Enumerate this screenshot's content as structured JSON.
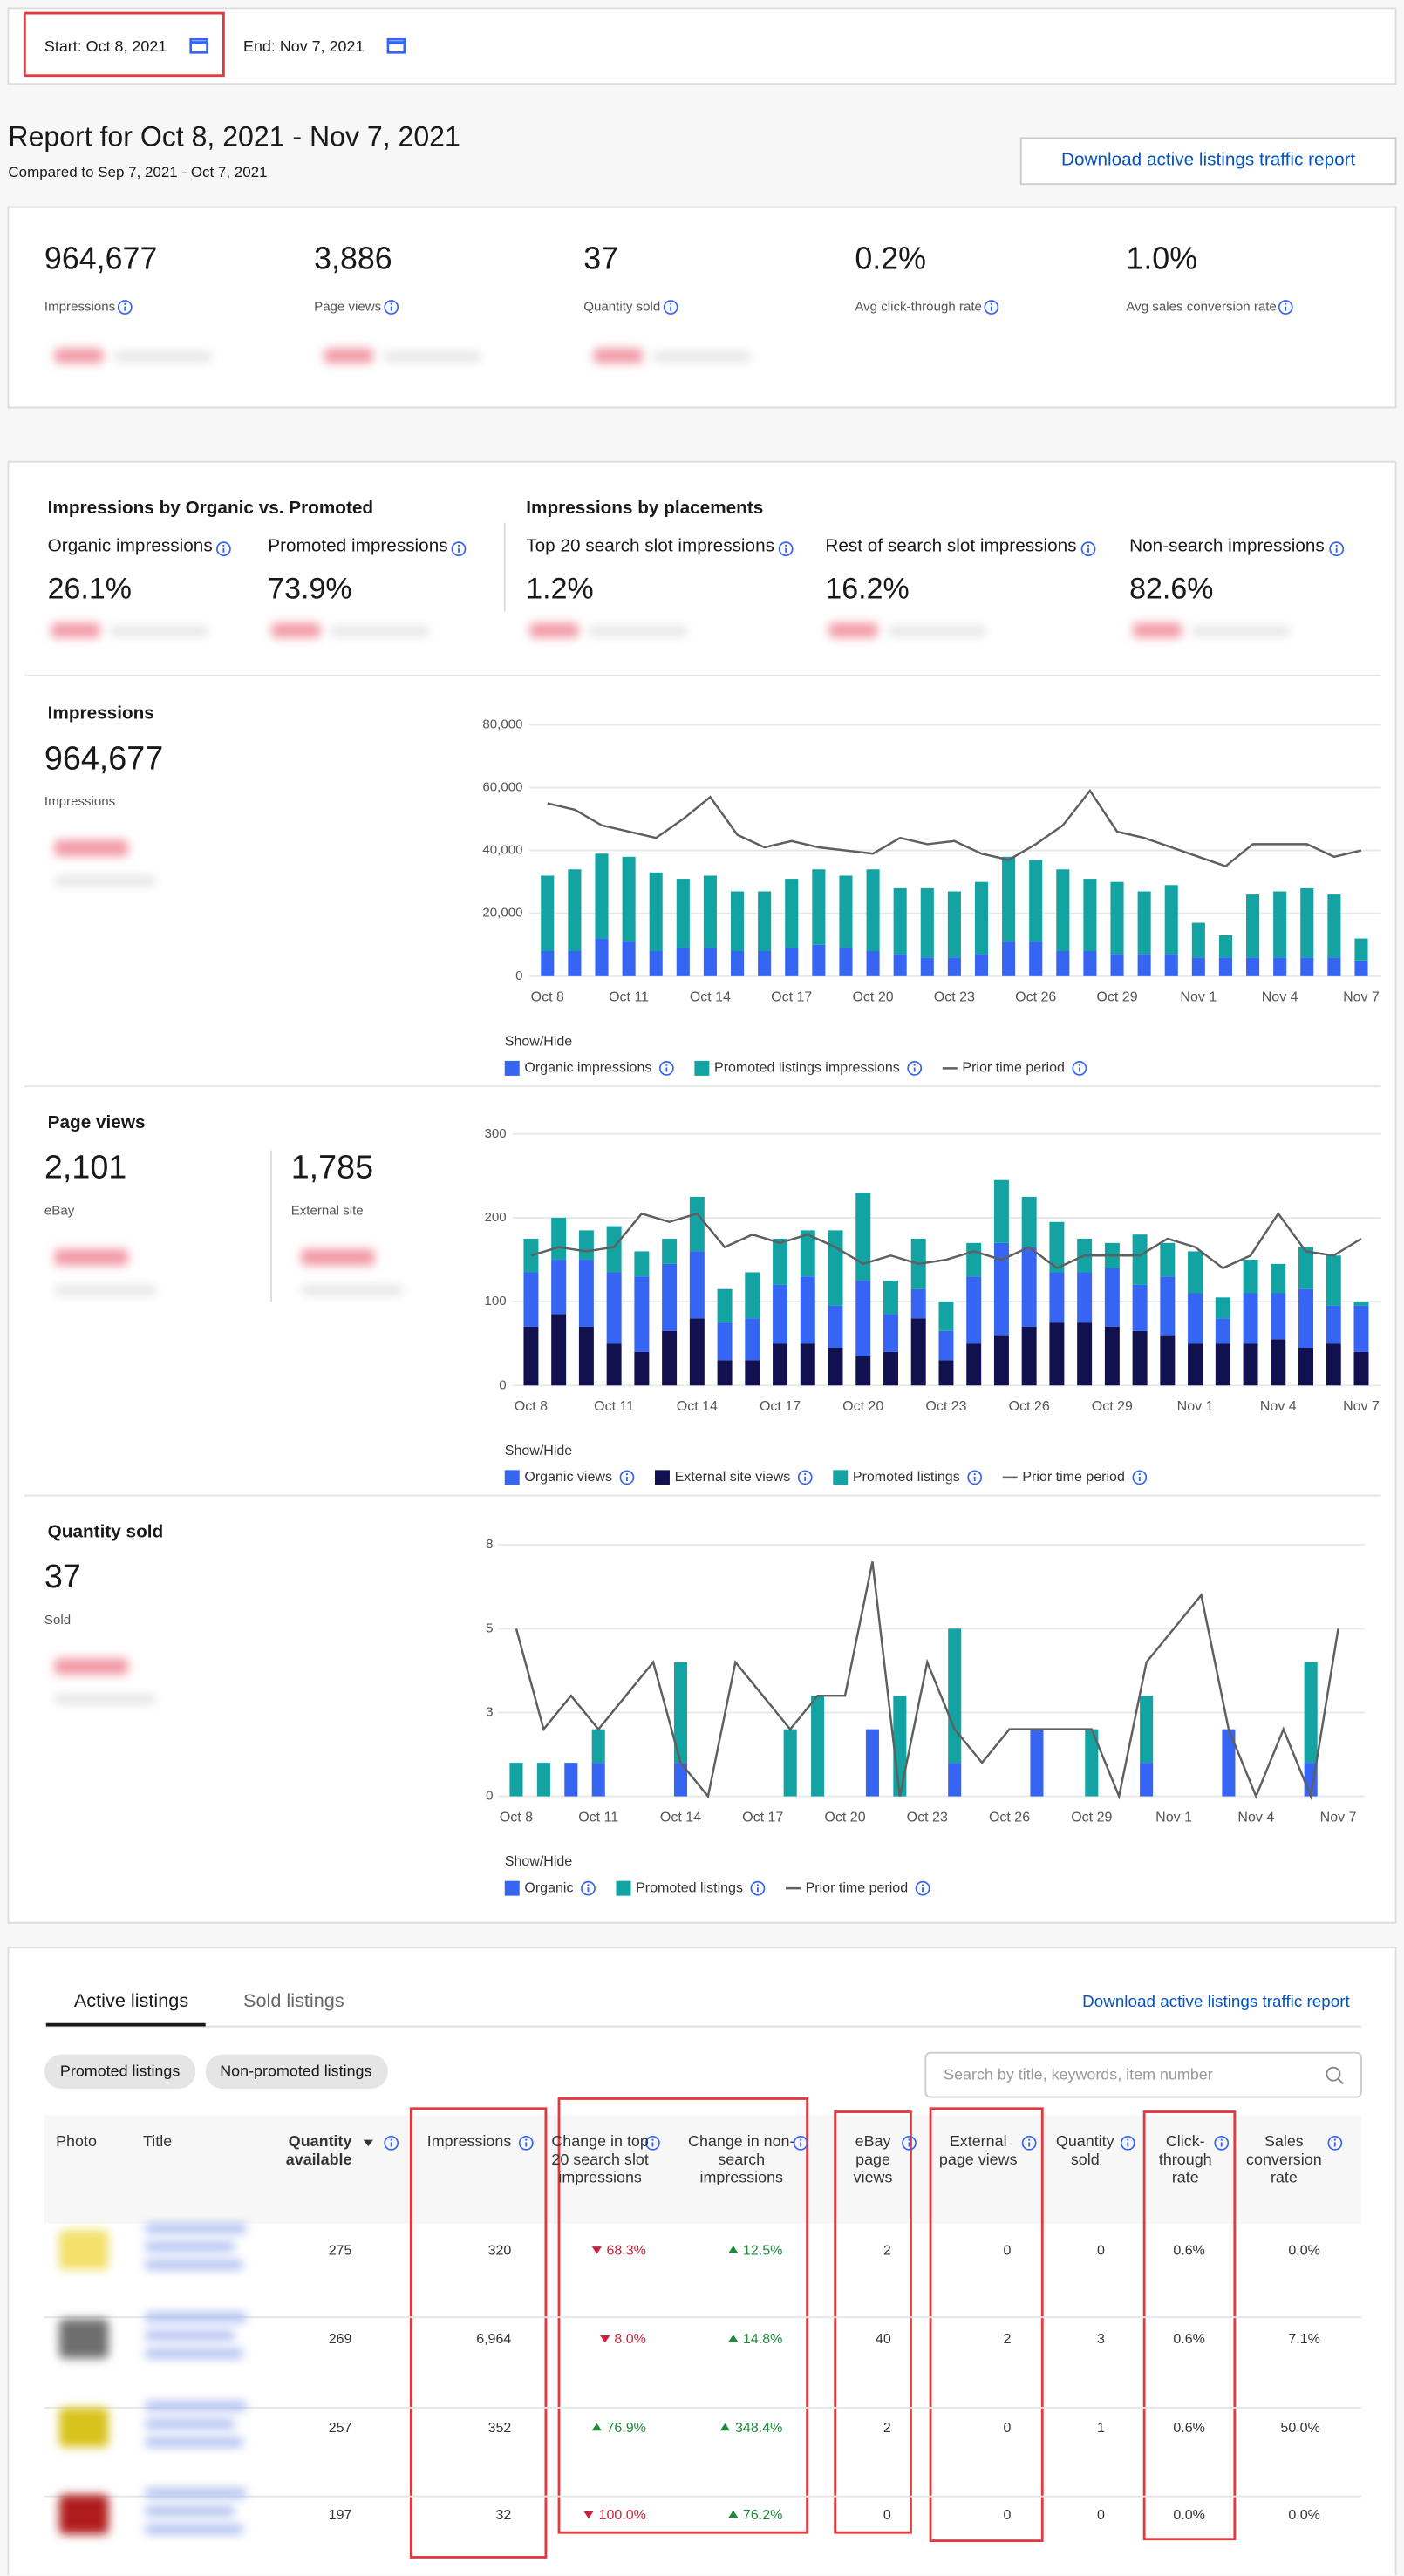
{
  "header": {
    "start": "Start: Oct 8, 2021",
    "end": "End: Nov 7, 2021"
  },
  "report": {
    "title": "Report for Oct 8, 2021 - Nov 7, 2021",
    "compared": "Compared to Sep 7, 2021 - Oct 7, 2021",
    "download": "Download active listings traffic report"
  },
  "summary": [
    {
      "value": "964,677",
      "label": "Impressions"
    },
    {
      "value": "3,886",
      "label": "Page views"
    },
    {
      "value": "37",
      "label": "Quantity sold"
    },
    {
      "value": "0.2%",
      "label": "Avg click-through rate"
    },
    {
      "value": "1.0%",
      "label": "Avg sales conversion rate"
    }
  ],
  "breakdown": [
    {
      "title": "Impressions by Organic vs. Promoted",
      "items": [
        {
          "label": "Organic impressions",
          "value": "26.1%"
        },
        {
          "label": "Promoted impressions",
          "value": "73.9%"
        }
      ]
    },
    {
      "title": "Impressions by placements",
      "items": [
        {
          "label": "Top 20 search slot impressions",
          "value": "1.2%"
        },
        {
          "label": "Rest of search slot impressions",
          "value": "16.2%"
        },
        {
          "label": "Non-search impressions",
          "value": "82.6%"
        }
      ]
    }
  ],
  "panels": [
    {
      "title": "Impressions",
      "metrics": [
        {
          "value": "964,677",
          "label": "Impressions"
        }
      ]
    },
    {
      "title": "Page views",
      "metrics": [
        {
          "value": "2,101",
          "label": "eBay"
        },
        {
          "value": "1,785",
          "label": "External site"
        }
      ]
    },
    {
      "title": "Quantity sold",
      "metrics": [
        {
          "value": "37",
          "label": "Sold"
        }
      ]
    }
  ],
  "chart_data": [
    {
      "type": "bar",
      "stacked": true,
      "legend_title": "Show/Hide",
      "categories": [
        "Oct 8",
        null,
        null,
        "Oct 11",
        null,
        null,
        "Oct 14",
        null,
        null,
        "Oct 17",
        null,
        null,
        "Oct 20",
        null,
        null,
        "Oct 23",
        null,
        null,
        "Oct 26",
        null,
        null,
        "Oct 29",
        null,
        null,
        "Nov 1",
        null,
        null,
        "Nov 4",
        null,
        null,
        "Nov 7"
      ],
      "series": [
        {
          "name": "Organic impressions",
          "color": "#3665f3",
          "values": [
            8000,
            8000,
            12000,
            11000,
            8000,
            9000,
            9000,
            8000,
            8000,
            9000,
            10000,
            9000,
            8000,
            7000,
            6000,
            6000,
            7000,
            11000,
            11000,
            8000,
            8000,
            7000,
            7000,
            7000,
            6000,
            6000,
            6000,
            6000,
            6000,
            6000,
            5000
          ]
        },
        {
          "name": "Promoted listings impressions",
          "color": "#14a3a3",
          "values": [
            24000,
            26000,
            27000,
            27000,
            25000,
            22000,
            23000,
            19000,
            19000,
            22000,
            24000,
            23000,
            26000,
            21000,
            22000,
            21000,
            23000,
            27000,
            26000,
            26000,
            23000,
            23000,
            20000,
            22000,
            11000,
            7000,
            20000,
            21000,
            22000,
            20000,
            7000
          ]
        },
        {
          "name": "Prior time period",
          "type": "line",
          "color": "#5f5f5f",
          "values": [
            55000,
            53000,
            48000,
            46000,
            44000,
            50000,
            57000,
            45000,
            41000,
            43000,
            41000,
            40000,
            39000,
            44000,
            42000,
            43000,
            39000,
            37000,
            42000,
            48000,
            59000,
            46000,
            44000,
            41000,
            38000,
            35000,
            42000,
            42000,
            42000,
            38000,
            40000
          ]
        }
      ],
      "ylim": [
        0,
        80000
      ],
      "yticks": [
        0,
        {
          "value": 20000,
          "label": "20,000"
        },
        {
          "value": 40000,
          "label": "40,000"
        },
        {
          "value": 60000,
          "label": "60,000"
        },
        {
          "value": 80000,
          "label": "80,000"
        }
      ],
      "grid": true
    },
    {
      "type": "bar",
      "stacked": true,
      "legend_title": "Show/Hide",
      "categories": [
        "Oct 8",
        null,
        null,
        "Oct 11",
        null,
        null,
        "Oct 14",
        null,
        null,
        "Oct 17",
        null,
        null,
        "Oct 20",
        null,
        null,
        "Oct 23",
        null,
        null,
        "Oct 26",
        null,
        null,
        "Oct 29",
        null,
        null,
        "Nov 1",
        null,
        null,
        "Nov 4",
        null,
        null,
        "Nov 7"
      ],
      "series": [
        {
          "name": "Organic views",
          "color": "#3665f3",
          "values": [
            65,
            65,
            80,
            85,
            90,
            80,
            80,
            45,
            50,
            70,
            80,
            50,
            90,
            45,
            35,
            35,
            80,
            110,
            95,
            60,
            60,
            70,
            55,
            70,
            60,
            30,
            60,
            55,
            70,
            45,
            55
          ]
        },
        {
          "name": "External site views",
          "color": "#111150",
          "values": [
            70,
            85,
            70,
            50,
            40,
            65,
            80,
            30,
            30,
            50,
            50,
            45,
            35,
            40,
            80,
            30,
            50,
            60,
            70,
            75,
            75,
            70,
            65,
            60,
            50,
            50,
            50,
            55,
            45,
            50,
            40
          ]
        },
        {
          "name": "Promoted listings",
          "color": "#14a3a3",
          "values": [
            40,
            50,
            35,
            55,
            30,
            30,
            65,
            40,
            55,
            55,
            55,
            90,
            105,
            40,
            60,
            35,
            40,
            75,
            60,
            60,
            40,
            30,
            60,
            40,
            50,
            25,
            40,
            35,
            50,
            60,
            5
          ]
        },
        {
          "name": "Prior time period",
          "type": "line",
          "color": "#5f5f5f",
          "values": [
            155,
            165,
            160,
            165,
            205,
            195,
            205,
            165,
            180,
            170,
            180,
            165,
            145,
            155,
            145,
            150,
            160,
            150,
            165,
            140,
            155,
            155,
            155,
            175,
            165,
            140,
            155,
            205,
            160,
            155,
            175
          ]
        }
      ],
      "stack_order": [
        1,
        0,
        2
      ],
      "ylim": [
        0,
        300
      ],
      "yticks": [
        0,
        100,
        200,
        300
      ],
      "grid": true
    },
    {
      "type": "bar",
      "stacked": true,
      "legend_title": "Show/Hide",
      "categories": [
        "Oct 8",
        null,
        null,
        "Oct 11",
        null,
        null,
        "Oct 14",
        null,
        null,
        "Oct 17",
        null,
        null,
        "Oct 20",
        null,
        null,
        "Oct 23",
        null,
        null,
        "Oct 26",
        null,
        null,
        "Oct 29",
        null,
        null,
        "Nov 1",
        null,
        null,
        "Nov 4",
        null,
        null,
        "Nov 7"
      ],
      "series": [
        {
          "name": "Organic",
          "color": "#3665f3",
          "values": [
            0,
            0,
            1,
            1,
            0,
            0,
            1,
            0,
            0,
            0,
            0,
            0,
            0,
            2,
            0,
            0,
            1,
            0,
            0,
            2,
            0,
            0,
            0,
            1,
            0,
            0,
            2,
            0,
            0,
            1,
            0
          ]
        },
        {
          "name": "Promoted listings",
          "color": "#14a3a3",
          "values": [
            1,
            1,
            0,
            1,
            0,
            0,
            3,
            0,
            0,
            0,
            2,
            3,
            0,
            0,
            3,
            0,
            4,
            0,
            0,
            0,
            0,
            2,
            0,
            2,
            0,
            0,
            0,
            0,
            0,
            3,
            0
          ]
        },
        {
          "name": "Prior time period",
          "type": "line",
          "color": "#5f5f5f",
          "values": [
            5,
            2,
            3,
            2,
            3,
            4,
            1,
            0,
            4,
            3,
            2,
            3,
            3,
            7,
            0,
            4,
            2,
            1,
            2,
            2,
            2,
            2,
            0,
            4,
            5,
            6,
            2,
            0,
            2,
            0,
            5
          ]
        }
      ],
      "ylim": [
        0,
        7.5
      ],
      "yticks": [
        0,
        {
          "value": 2.5,
          "label": "3"
        },
        5,
        {
          "value": 7.5,
          "label": "8"
        }
      ],
      "grid": true
    }
  ],
  "listings": {
    "tabs": [
      "Active listings",
      "Sold listings"
    ],
    "download": "Download active listings traffic report",
    "filters": [
      "Promoted listings",
      "Non-promoted listings"
    ],
    "search_placeholder": "Search by title, keywords, item number",
    "columns": [
      "Photo",
      "Title",
      "Quantity available",
      "Impressions",
      "Change in top 20 search slot impressions",
      "Change in non-search impressions",
      "eBay page views",
      "External page views",
      "Quantity sold",
      "Click-through rate",
      "Sales conversion rate"
    ],
    "rows": [
      [
        "275",
        "320",
        {
          "text": "68.3%",
          "direction": "down"
        },
        {
          "text": "12.5%",
          "direction": "up"
        },
        "2",
        "0",
        "0",
        "0.6%",
        "0.0%"
      ],
      [
        "269",
        "6,964",
        {
          "text": "8.0%",
          "direction": "down"
        },
        {
          "text": "14.8%",
          "direction": "up"
        },
        "40",
        "2",
        "3",
        "0.6%",
        "7.1%"
      ],
      [
        "257",
        "352",
        {
          "text": "76.9%",
          "direction": "up"
        },
        {
          "text": "348.4%",
          "direction": "up"
        },
        "2",
        "0",
        "1",
        "0.6%",
        "50.0%"
      ],
      [
        "197",
        "32",
        {
          "text": "100.0%",
          "direction": "down"
        },
        {
          "text": "76.2%",
          "direction": "up"
        },
        "0",
        "0",
        "0",
        "0.0%",
        "0.0%"
      ]
    ]
  }
}
